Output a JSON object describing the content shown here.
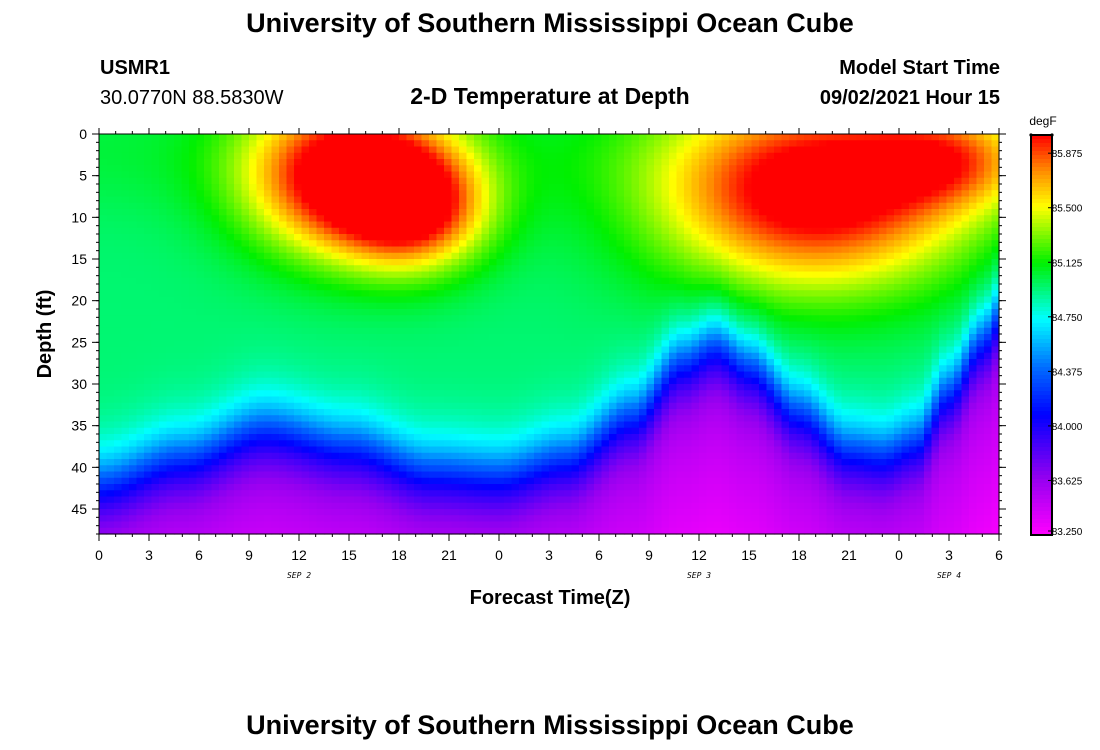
{
  "header": {
    "title_top": "University of Southern Mississippi Ocean Cube",
    "title_bottom": "University of Southern Mississippi Ocean Cube",
    "station_id": "USMR1",
    "station_coords": "30.0770N  88.5830W",
    "plot_title": "2-D Temperature at Depth",
    "model_start_label": "Model Start Time",
    "model_start_value": "09/02/2021 Hour 15"
  },
  "chart_data": {
    "type": "heatmap",
    "title": "2-D Temperature at Depth",
    "xlabel": "Forecast Time(Z)",
    "ylabel": "Depth (ft)",
    "x_hours_range": [
      0,
      54
    ],
    "x_tick_labels": [
      "0",
      "3",
      "6",
      "9",
      "12",
      "15",
      "18",
      "21",
      "0",
      "3",
      "6",
      "9",
      "12",
      "15",
      "18",
      "21",
      "0",
      "3",
      "6"
    ],
    "date_labels": [
      {
        "text": "SEP 2",
        "hour": 12
      },
      {
        "text": "SEP 3",
        "hour": 36
      },
      {
        "text": "SEP 4",
        "hour": 51
      }
    ],
    "ylim": [
      0,
      48
    ],
    "y_ticks": [
      0,
      5,
      10,
      15,
      20,
      25,
      30,
      35,
      40,
      45
    ],
    "colorbar": {
      "unit": "degF",
      "min": 83.25,
      "max": 86.0,
      "labels": [
        "85.875",
        "85.500",
        "85.125",
        "84.750",
        "84.375",
        "84.000",
        "83.625",
        "83.250"
      ],
      "label_values": [
        85.875,
        85.5,
        85.125,
        84.75,
        84.375,
        84.0,
        83.625,
        83.25
      ]
    },
    "model": {
      "surface_hot_centers": [
        {
          "hour": 15.0,
          "depth": 5,
          "amplitude": 1.25,
          "x_sigma": 4.2,
          "y_sigma": 6.5
        },
        {
          "hour": 19.0,
          "depth": 9,
          "amplitude": 0.85,
          "x_sigma": 3.0,
          "y_sigma": 5.0
        },
        {
          "hour": 43.0,
          "depth": 7,
          "amplitude": 1.2,
          "x_sigma": 6.5,
          "y_sigma": 8.0
        },
        {
          "hour": 51.0,
          "depth": 3,
          "amplitude": 0.55,
          "x_sigma": 3.5,
          "y_sigma": 4.0
        }
      ],
      "thermocline_depth_by_hour": [
        [
          0,
          42
        ],
        [
          5,
          39
        ],
        [
          10,
          35.5
        ],
        [
          15,
          37.5
        ],
        [
          20,
          40.5
        ],
        [
          24,
          41
        ],
        [
          28,
          39
        ],
        [
          32,
          34
        ],
        [
          35,
          27.5
        ],
        [
          37,
          25.5
        ],
        [
          39,
          28
        ],
        [
          42,
          33.5
        ],
        [
          45,
          38
        ],
        [
          47,
          38.5
        ],
        [
          49,
          37
        ],
        [
          51,
          31
        ],
        [
          53,
          25
        ],
        [
          54,
          22
        ]
      ],
      "base_upper": 84.95,
      "base_lower": 83.55
    }
  }
}
